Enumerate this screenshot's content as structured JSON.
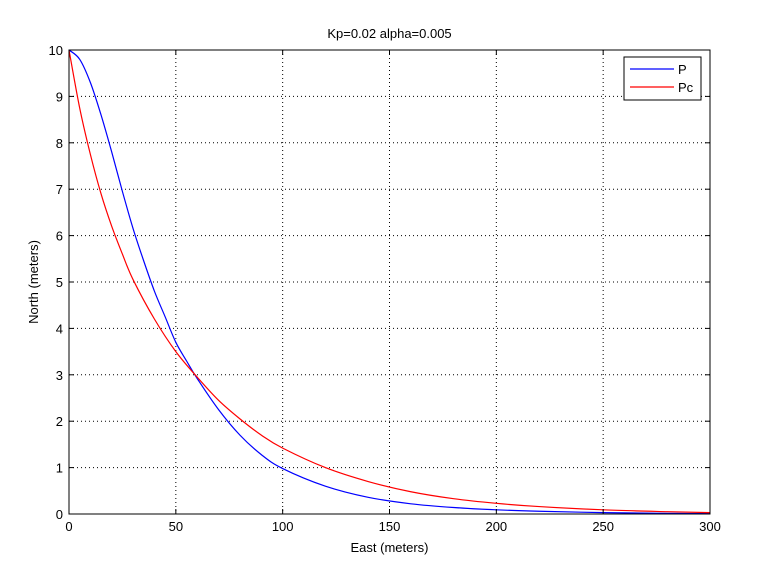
{
  "chart_data": {
    "type": "line",
    "title": "Kp=0.02 alpha=0.005",
    "xlabel": "East (meters)",
    "ylabel": "North (meters)",
    "xlim": [
      0,
      300
    ],
    "ylim": [
      0,
      10
    ],
    "xticks": [
      0,
      50,
      100,
      150,
      200,
      250,
      300
    ],
    "yticks": [
      0,
      1,
      2,
      3,
      4,
      5,
      6,
      7,
      8,
      9,
      10
    ],
    "grid": true,
    "grid_style": "dotted",
    "legend_position": "top-right",
    "series": [
      {
        "name": "P",
        "color": "#0000ff",
        "x": [
          0,
          5,
          10,
          15,
          20,
          25,
          30,
          35,
          40,
          45,
          50,
          55,
          60,
          70,
          80,
          90,
          100,
          120,
          140,
          160,
          180,
          200,
          220,
          250,
          280,
          300
        ],
        "y": [
          10,
          9.8,
          9.3,
          8.6,
          7.8,
          6.95,
          6.15,
          5.45,
          4.8,
          4.25,
          3.7,
          3.3,
          2.92,
          2.25,
          1.7,
          1.28,
          0.98,
          0.6,
          0.36,
          0.22,
          0.14,
          0.09,
          0.06,
          0.03,
          0.015,
          0.01
        ]
      },
      {
        "name": "Pc",
        "color": "#ff0000",
        "x": [
          0,
          5,
          10,
          15,
          20,
          25,
          30,
          40,
          50,
          60,
          70,
          80,
          90,
          100,
          120,
          140,
          160,
          180,
          200,
          220,
          250,
          280,
          300
        ],
        "y": [
          10,
          8.75,
          7.75,
          6.9,
          6.2,
          5.6,
          5.05,
          4.2,
          3.5,
          2.95,
          2.45,
          2.05,
          1.7,
          1.42,
          1.0,
          0.7,
          0.48,
          0.33,
          0.23,
          0.16,
          0.09,
          0.05,
          0.03
        ]
      }
    ]
  }
}
